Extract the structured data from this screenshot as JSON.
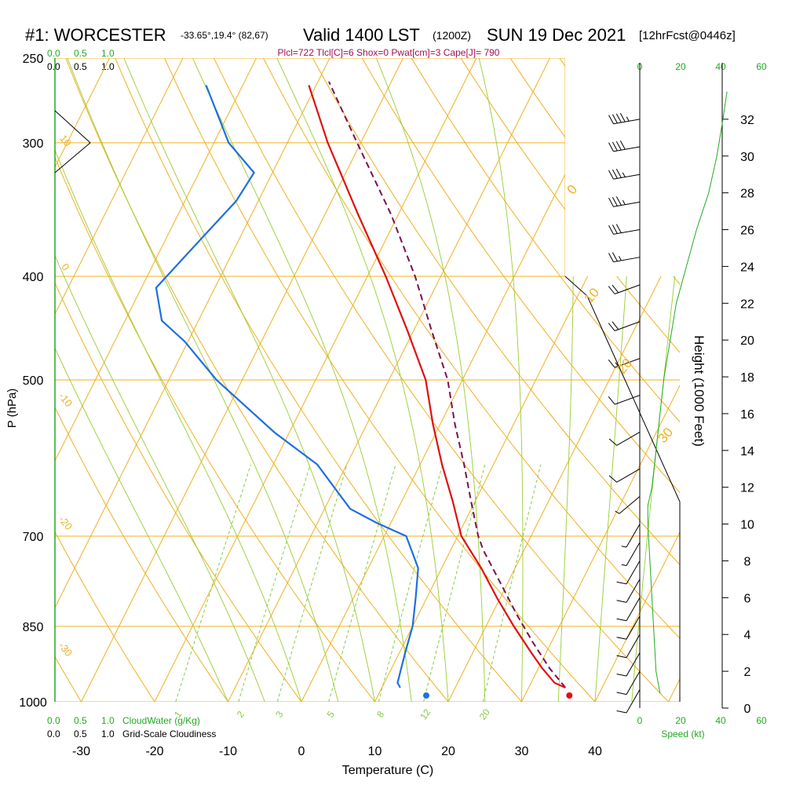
{
  "header": {
    "station": "#1: WORCESTER",
    "coords": "-33.65°,19.4° (82,67)",
    "valid": "Valid 1400 LST",
    "utc": "(1200Z)",
    "date": "SUN 19 Dec 2021",
    "forecast": "[12hrFcst@0446z]",
    "indices": "Plcl=722 Tlcl[C]=6 Shox=0 Pwat[cm]=3 Cape[J]= 790"
  },
  "colors": {
    "temperature": "#e01010",
    "dewpoint": "#1f6fe0",
    "parcel": "#7a1050",
    "isotherm_isobar": "#f0b020",
    "dry_adiabat": "#f0b020",
    "moist_adiabat": "#99cc33",
    "mixing_ratio": "#88cc44",
    "green_text": "#22aa22",
    "indices_text": "#a0105a"
  },
  "labels": {
    "ylabel": "P (hPa)",
    "xlabel": "Temperature (C)",
    "height_label": "Height (1000 Feet)",
    "speed_label": "Speed (kt)",
    "cloudwater": "CloudWater (g/Kg)",
    "cloudiness": "Grid-Scale Cloudiness"
  },
  "scale_ticks": {
    "cloud_top": [
      "0.0",
      "0.5",
      "1.0"
    ],
    "cloud_bottom": [
      "0.0",
      "0.5",
      "1.0"
    ],
    "speed": [
      "0",
      "20",
      "40",
      "60"
    ]
  },
  "chart_data": {
    "type": "skew-t",
    "pressure_ticks": [
      250,
      300,
      400,
      500,
      700,
      850,
      1000
    ],
    "temperature_ticks": [
      -30,
      -20,
      -10,
      0,
      10,
      20,
      30,
      40
    ],
    "height_ticks": [
      0,
      2,
      4,
      6,
      8,
      10,
      12,
      14,
      16,
      18,
      20,
      22,
      24,
      26,
      28,
      30,
      32
    ],
    "mixing_ratio_labels": [
      "1",
      "2",
      "3",
      "5",
      "8",
      "12",
      "20"
    ],
    "dry_adiabat_labels": [
      "0",
      "10",
      "20",
      "30"
    ],
    "left_theta_labels": [
      "10",
      "0",
      "-10",
      "-20",
      "-30"
    ],
    "temperature_profile": [
      {
        "p": 970,
        "t": 35.0
      },
      {
        "p": 960,
        "t": 33.2
      },
      {
        "p": 930,
        "t": 30.5
      },
      {
        "p": 900,
        "t": 28.0
      },
      {
        "p": 850,
        "t": 23.8
      },
      {
        "p": 800,
        "t": 19.6
      },
      {
        "p": 750,
        "t": 15.4
      },
      {
        "p": 700,
        "t": 10.5
      },
      {
        "p": 650,
        "t": 7.0
      },
      {
        "p": 600,
        "t": 3.0
      },
      {
        "p": 550,
        "t": -1.0
      },
      {
        "p": 500,
        "t": -5.0
      },
      {
        "p": 450,
        "t": -10.8
      },
      {
        "p": 400,
        "t": -17.5
      },
      {
        "p": 350,
        "t": -25.5
      },
      {
        "p": 300,
        "t": -34.5
      },
      {
        "p": 265,
        "t": -41.0
      }
    ],
    "dewpoint_profile": [
      {
        "p": 970,
        "t": 12.5
      },
      {
        "p": 960,
        "t": 11.8
      },
      {
        "p": 900,
        "t": 10.8
      },
      {
        "p": 850,
        "t": 10.0
      },
      {
        "p": 800,
        "t": 8.5
      },
      {
        "p": 750,
        "t": 6.8
      },
      {
        "p": 700,
        "t": 3.0
      },
      {
        "p": 680,
        "t": -2.0
      },
      {
        "p": 660,
        "t": -6.5
      },
      {
        "p": 600,
        "t": -14.0
      },
      {
        "p": 560,
        "t": -22.0
      },
      {
        "p": 500,
        "t": -33.5
      },
      {
        "p": 460,
        "t": -40.5
      },
      {
        "p": 440,
        "t": -45.0
      },
      {
        "p": 410,
        "t": -48.0
      },
      {
        "p": 380,
        "t": -46.0
      },
      {
        "p": 340,
        "t": -43.0
      },
      {
        "p": 320,
        "t": -42.5
      },
      {
        "p": 300,
        "t": -48.0
      },
      {
        "p": 265,
        "t": -55.0
      }
    ],
    "parcel_profile": [
      {
        "p": 970,
        "t": 35.0
      },
      {
        "p": 930,
        "t": 31.5
      },
      {
        "p": 880,
        "t": 27.5
      },
      {
        "p": 830,
        "t": 23.5
      },
      {
        "p": 780,
        "t": 19.5
      },
      {
        "p": 722,
        "t": 14.5
      },
      {
        "p": 700,
        "t": 12.8
      },
      {
        "p": 650,
        "t": 9.5
      },
      {
        "p": 600,
        "t": 6.0
      },
      {
        "p": 550,
        "t": 2.0
      },
      {
        "p": 500,
        "t": -2.0
      },
      {
        "p": 450,
        "t": -7.5
      },
      {
        "p": 400,
        "t": -13.5
      },
      {
        "p": 350,
        "t": -21.0
      },
      {
        "p": 300,
        "t": -30.5
      },
      {
        "p": 263,
        "t": -38.5
      }
    ],
    "surface_temperature": 36.5,
    "surface_dewpoint": 17.0,
    "speed_profile": [
      {
        "h": 0.8,
        "s": 10
      },
      {
        "h": 2,
        "s": 8
      },
      {
        "h": 4,
        "s": 7
      },
      {
        "h": 6,
        "s": 6
      },
      {
        "h": 8,
        "s": 5
      },
      {
        "h": 10,
        "s": 4
      },
      {
        "h": 11,
        "s": 4
      },
      {
        "h": 12,
        "s": 6
      },
      {
        "h": 14,
        "s": 8
      },
      {
        "h": 16,
        "s": 10
      },
      {
        "h": 18,
        "s": 12
      },
      {
        "h": 20,
        "s": 15
      },
      {
        "h": 22,
        "s": 18
      },
      {
        "h": 24,
        "s": 23
      },
      {
        "h": 26,
        "s": 28
      },
      {
        "h": 28,
        "s": 34
      },
      {
        "h": 30,
        "s": 38
      },
      {
        "h": 32,
        "s": 41
      },
      {
        "h": 33.5,
        "s": 43
      }
    ],
    "wind_barbs": [
      {
        "h": 32,
        "dir": 280,
        "spd": 45
      },
      {
        "h": 30.5,
        "dir": 280,
        "spd": 40
      },
      {
        "h": 29,
        "dir": 280,
        "spd": 35
      },
      {
        "h": 27.5,
        "dir": 280,
        "spd": 35
      },
      {
        "h": 26,
        "dir": 280,
        "spd": 30
      },
      {
        "h": 24.5,
        "dir": 280,
        "spd": 25
      },
      {
        "h": 23,
        "dir": 290,
        "spd": 20
      },
      {
        "h": 21,
        "dir": 290,
        "spd": 20
      },
      {
        "h": 19,
        "dir": 290,
        "spd": 15
      },
      {
        "h": 17,
        "dir": 290,
        "spd": 10
      },
      {
        "h": 15,
        "dir": 300,
        "spd": 10
      },
      {
        "h": 13,
        "dir": 300,
        "spd": 10
      },
      {
        "h": 11.5,
        "dir": 310,
        "spd": 5
      },
      {
        "h": 10,
        "dir": 330,
        "spd": 5
      },
      {
        "h": 9,
        "dir": 330,
        "spd": 5
      },
      {
        "h": 8,
        "dir": 330,
        "spd": 10
      },
      {
        "h": 7,
        "dir": 330,
        "spd": 10
      },
      {
        "h": 6,
        "dir": 330,
        "spd": 10
      },
      {
        "h": 5,
        "dir": 330,
        "spd": 10
      },
      {
        "h": 4,
        "dir": 330,
        "spd": 10
      },
      {
        "h": 3,
        "dir": 330,
        "spd": 10
      },
      {
        "h": 2,
        "dir": 330,
        "spd": 10
      },
      {
        "h": 1,
        "dir": 330,
        "spd": 10
      }
    ]
  }
}
